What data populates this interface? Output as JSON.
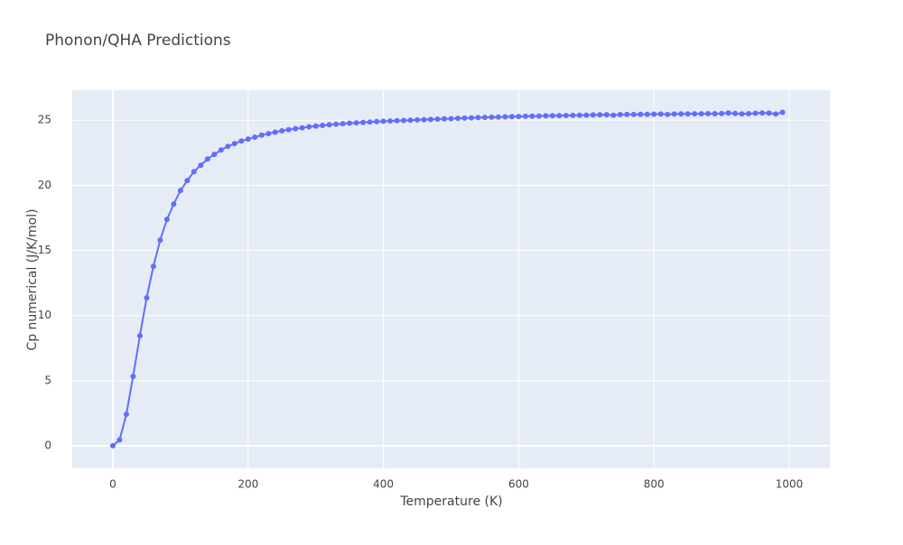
{
  "chart_data": {
    "type": "line",
    "title": "Phonon/QHA Predictions",
    "x_label": "Temperature (K)",
    "y_label": "Cp numerical (J/K/mol)",
    "x": [
      0,
      10,
      20,
      30,
      40,
      50,
      60,
      70,
      80,
      90,
      100,
      110,
      120,
      130,
      140,
      150,
      160,
      170,
      180,
      190,
      200,
      210,
      220,
      230,
      240,
      250,
      260,
      270,
      280,
      290,
      300,
      310,
      320,
      330,
      340,
      350,
      360,
      370,
      380,
      390,
      400,
      410,
      420,
      430,
      440,
      450,
      460,
      470,
      480,
      490,
      500,
      510,
      520,
      530,
      540,
      550,
      560,
      570,
      580,
      590,
      600,
      610,
      620,
      630,
      640,
      650,
      660,
      670,
      680,
      690,
      700,
      710,
      720,
      730,
      740,
      750,
      760,
      770,
      780,
      790,
      800,
      810,
      820,
      830,
      840,
      850,
      860,
      870,
      880,
      890,
      900,
      910,
      920,
      930,
      940,
      950,
      960,
      970,
      980,
      990
    ],
    "series": [
      {
        "color": "#636efa",
        "values": [
          0,
          0.45,
          2.42,
          5.33,
          8.45,
          11.36,
          13.78,
          15.79,
          17.38,
          18.56,
          19.6,
          20.36,
          21.05,
          21.54,
          22.02,
          22.37,
          22.71,
          22.99,
          23.2,
          23.4,
          23.55,
          23.7,
          23.85,
          23.97,
          24.08,
          24.18,
          24.27,
          24.35,
          24.42,
          24.49,
          24.55,
          24.6,
          24.65,
          24.69,
          24.73,
          24.77,
          24.8,
          24.83,
          24.86,
          24.89,
          24.92,
          24.94,
          24.96,
          24.98,
          25.0,
          25.02,
          25.04,
          25.06,
          25.08,
          25.1,
          25.12,
          25.14,
          25.16,
          25.18,
          25.2,
          25.21,
          25.23,
          25.24,
          25.26,
          25.27,
          25.28,
          25.3,
          25.31,
          25.32,
          25.33,
          25.34,
          25.35,
          25.36,
          25.37,
          25.38,
          25.39,
          25.4,
          25.41,
          25.42,
          25.38,
          25.43,
          25.44,
          25.44,
          25.45,
          25.45,
          25.46,
          25.47,
          25.44,
          25.47,
          25.48,
          25.48,
          25.49,
          25.49,
          25.5,
          25.5,
          25.51,
          25.55,
          25.52,
          25.48,
          25.5,
          25.53,
          25.55,
          25.54,
          25.47,
          25.6
        ]
      }
    ],
    "xlim": [
      -60,
      1060
    ],
    "ylim": [
      -1.73,
      27.3
    ],
    "xticks": [
      0,
      200,
      400,
      600,
      800,
      1000
    ],
    "yticks": [
      0,
      5,
      10,
      15,
      20,
      25
    ],
    "grid": true
  }
}
